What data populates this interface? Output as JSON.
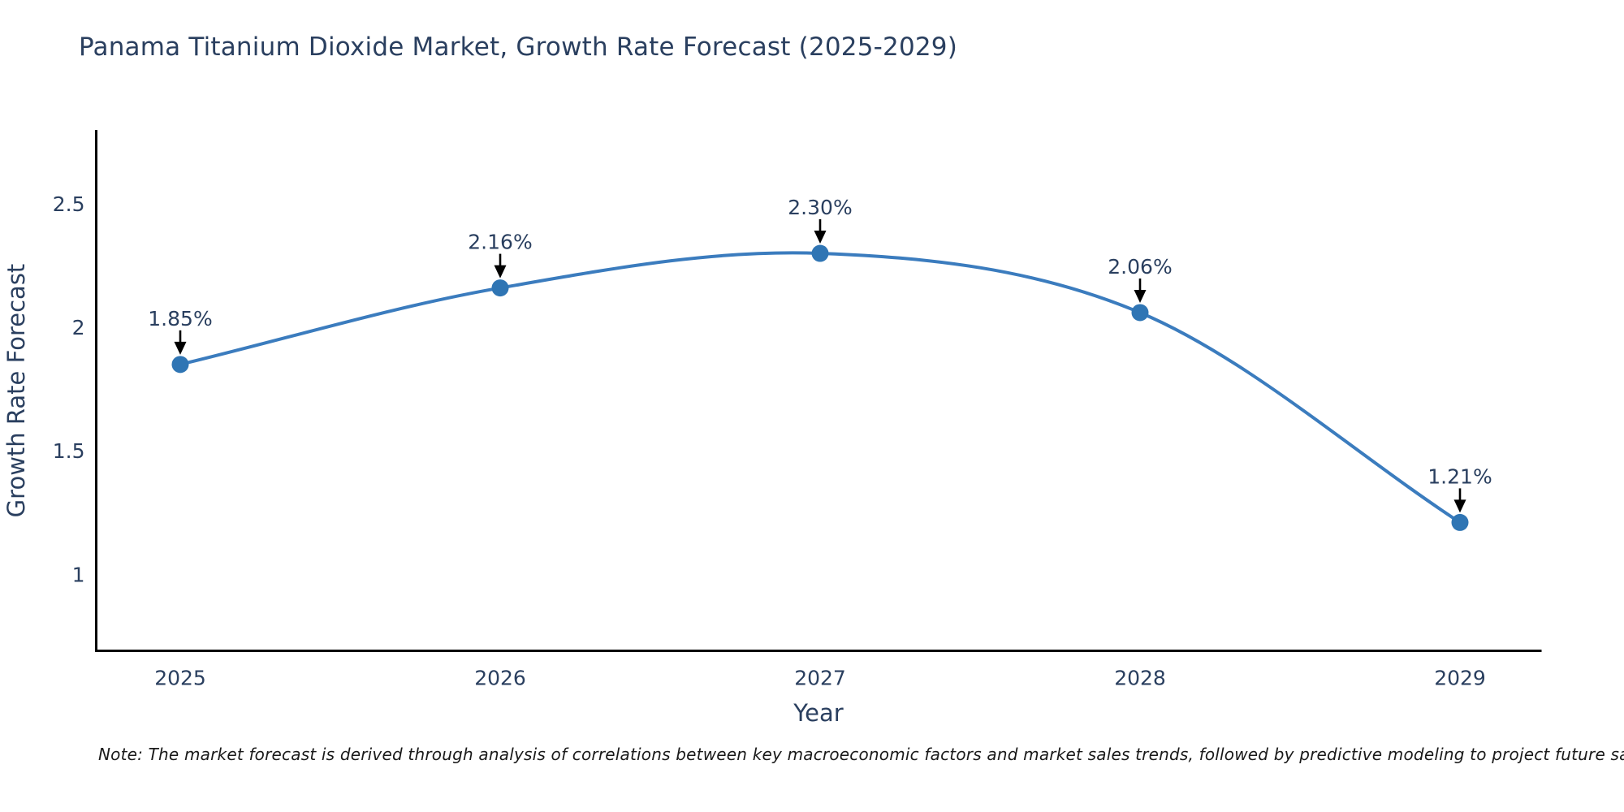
{
  "title": "Panama Titanium Dioxide Market, Growth Rate Forecast (2025-2029)",
  "note": "Note: The market forecast is derived through analysis of correlations between key macroeconomic factors and market sales trends, followed by predictive modeling to project future sales",
  "colors": {
    "text": "#2a3f5f",
    "note_text": "#1a1a1a",
    "axis_line": "#000000",
    "line": "#3b7cbe",
    "marker": "#2f75b4",
    "annotation_arrow": "#000000",
    "background": "#ffffff"
  },
  "chart_data": {
    "type": "line",
    "title": "Panama Titanium Dioxide Market, Growth Rate Forecast (2025-2029)",
    "xlabel": "Year",
    "ylabel": "Growth Rate Forecast",
    "x": [
      2025,
      2026,
      2027,
      2028,
      2029
    ],
    "categories": [
      "2025",
      "2026",
      "2027",
      "2028",
      "2029"
    ],
    "values": [
      1.85,
      2.16,
      2.3,
      2.06,
      1.21
    ],
    "point_labels": [
      "1.85%",
      "2.16%",
      "2.30%",
      "2.06%",
      "1.21%"
    ],
    "yticks": [
      2.5,
      2,
      1.5,
      1
    ],
    "ytick_labels": [
      "2.5",
      "2",
      "1.5",
      "1"
    ],
    "ylim": [
      0.69,
      2.8
    ],
    "grid": false,
    "legend": "none",
    "smooth": true,
    "annotations": "value labels with black arrows pointing to each marker"
  }
}
